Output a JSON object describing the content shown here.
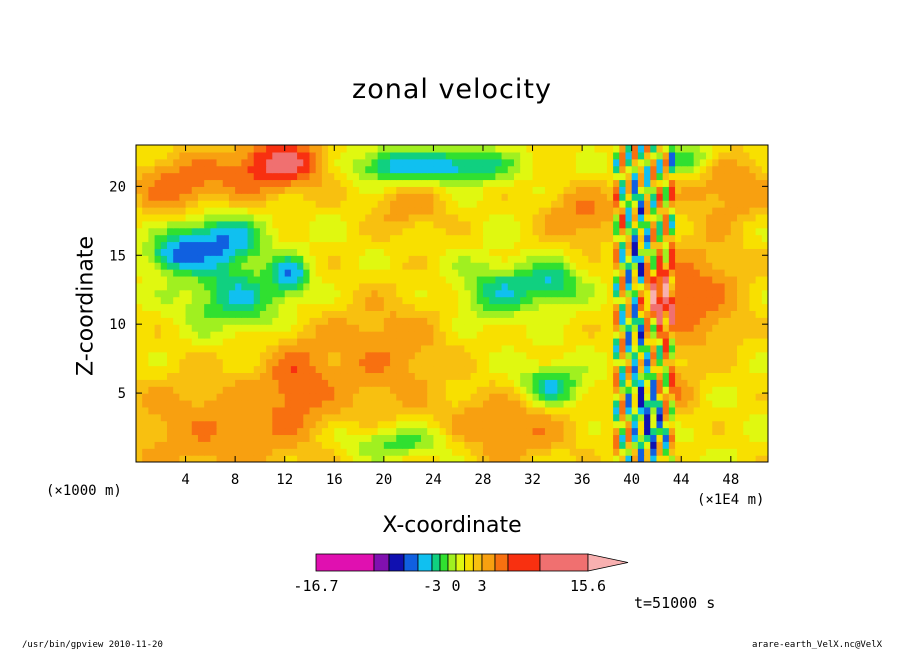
{
  "chart_data": {
    "type": "heatmap",
    "title": "zonal velocity",
    "xlabel": "X-coordinate",
    "ylabel": "Z-coordinate",
    "x_unit_label": "(×1000 m)",
    "x_scale_label": "(×1E4 m)",
    "xlim": [
      0,
      51
    ],
    "ylim": [
      0,
      23
    ],
    "x_ticks": [
      4,
      8,
      12,
      16,
      20,
      24,
      28,
      32,
      36,
      40,
      44,
      48
    ],
    "y_ticks": [
      5,
      10,
      15,
      20
    ],
    "colorbar": {
      "levels": [
        -16.7,
        -12,
        -9,
        -6,
        -4.5,
        -3,
        -2,
        -1,
        0,
        1,
        2,
        3,
        4.5,
        6,
        9,
        12,
        15.6
      ],
      "colors": [
        "#e010b0",
        "#8010b0",
        "#1010b0",
        "#1060e0",
        "#10c0f0",
        "#10d080",
        "#30e030",
        "#a0f020",
        "#e0f810",
        "#f8e000",
        "#f8c010",
        "#f8a010",
        "#f87010",
        "#f83010",
        "#f07070",
        "#f8b0b0"
      ],
      "tick_labels": [
        "-16.7",
        "-3",
        "0",
        "3",
        "15.6"
      ]
    },
    "time_label": "t=51000 s",
    "footer_left": "/usr/bin/gpview  2010-11-20",
    "footer_right": "arare-earth_VelX.nc@VelX"
  }
}
